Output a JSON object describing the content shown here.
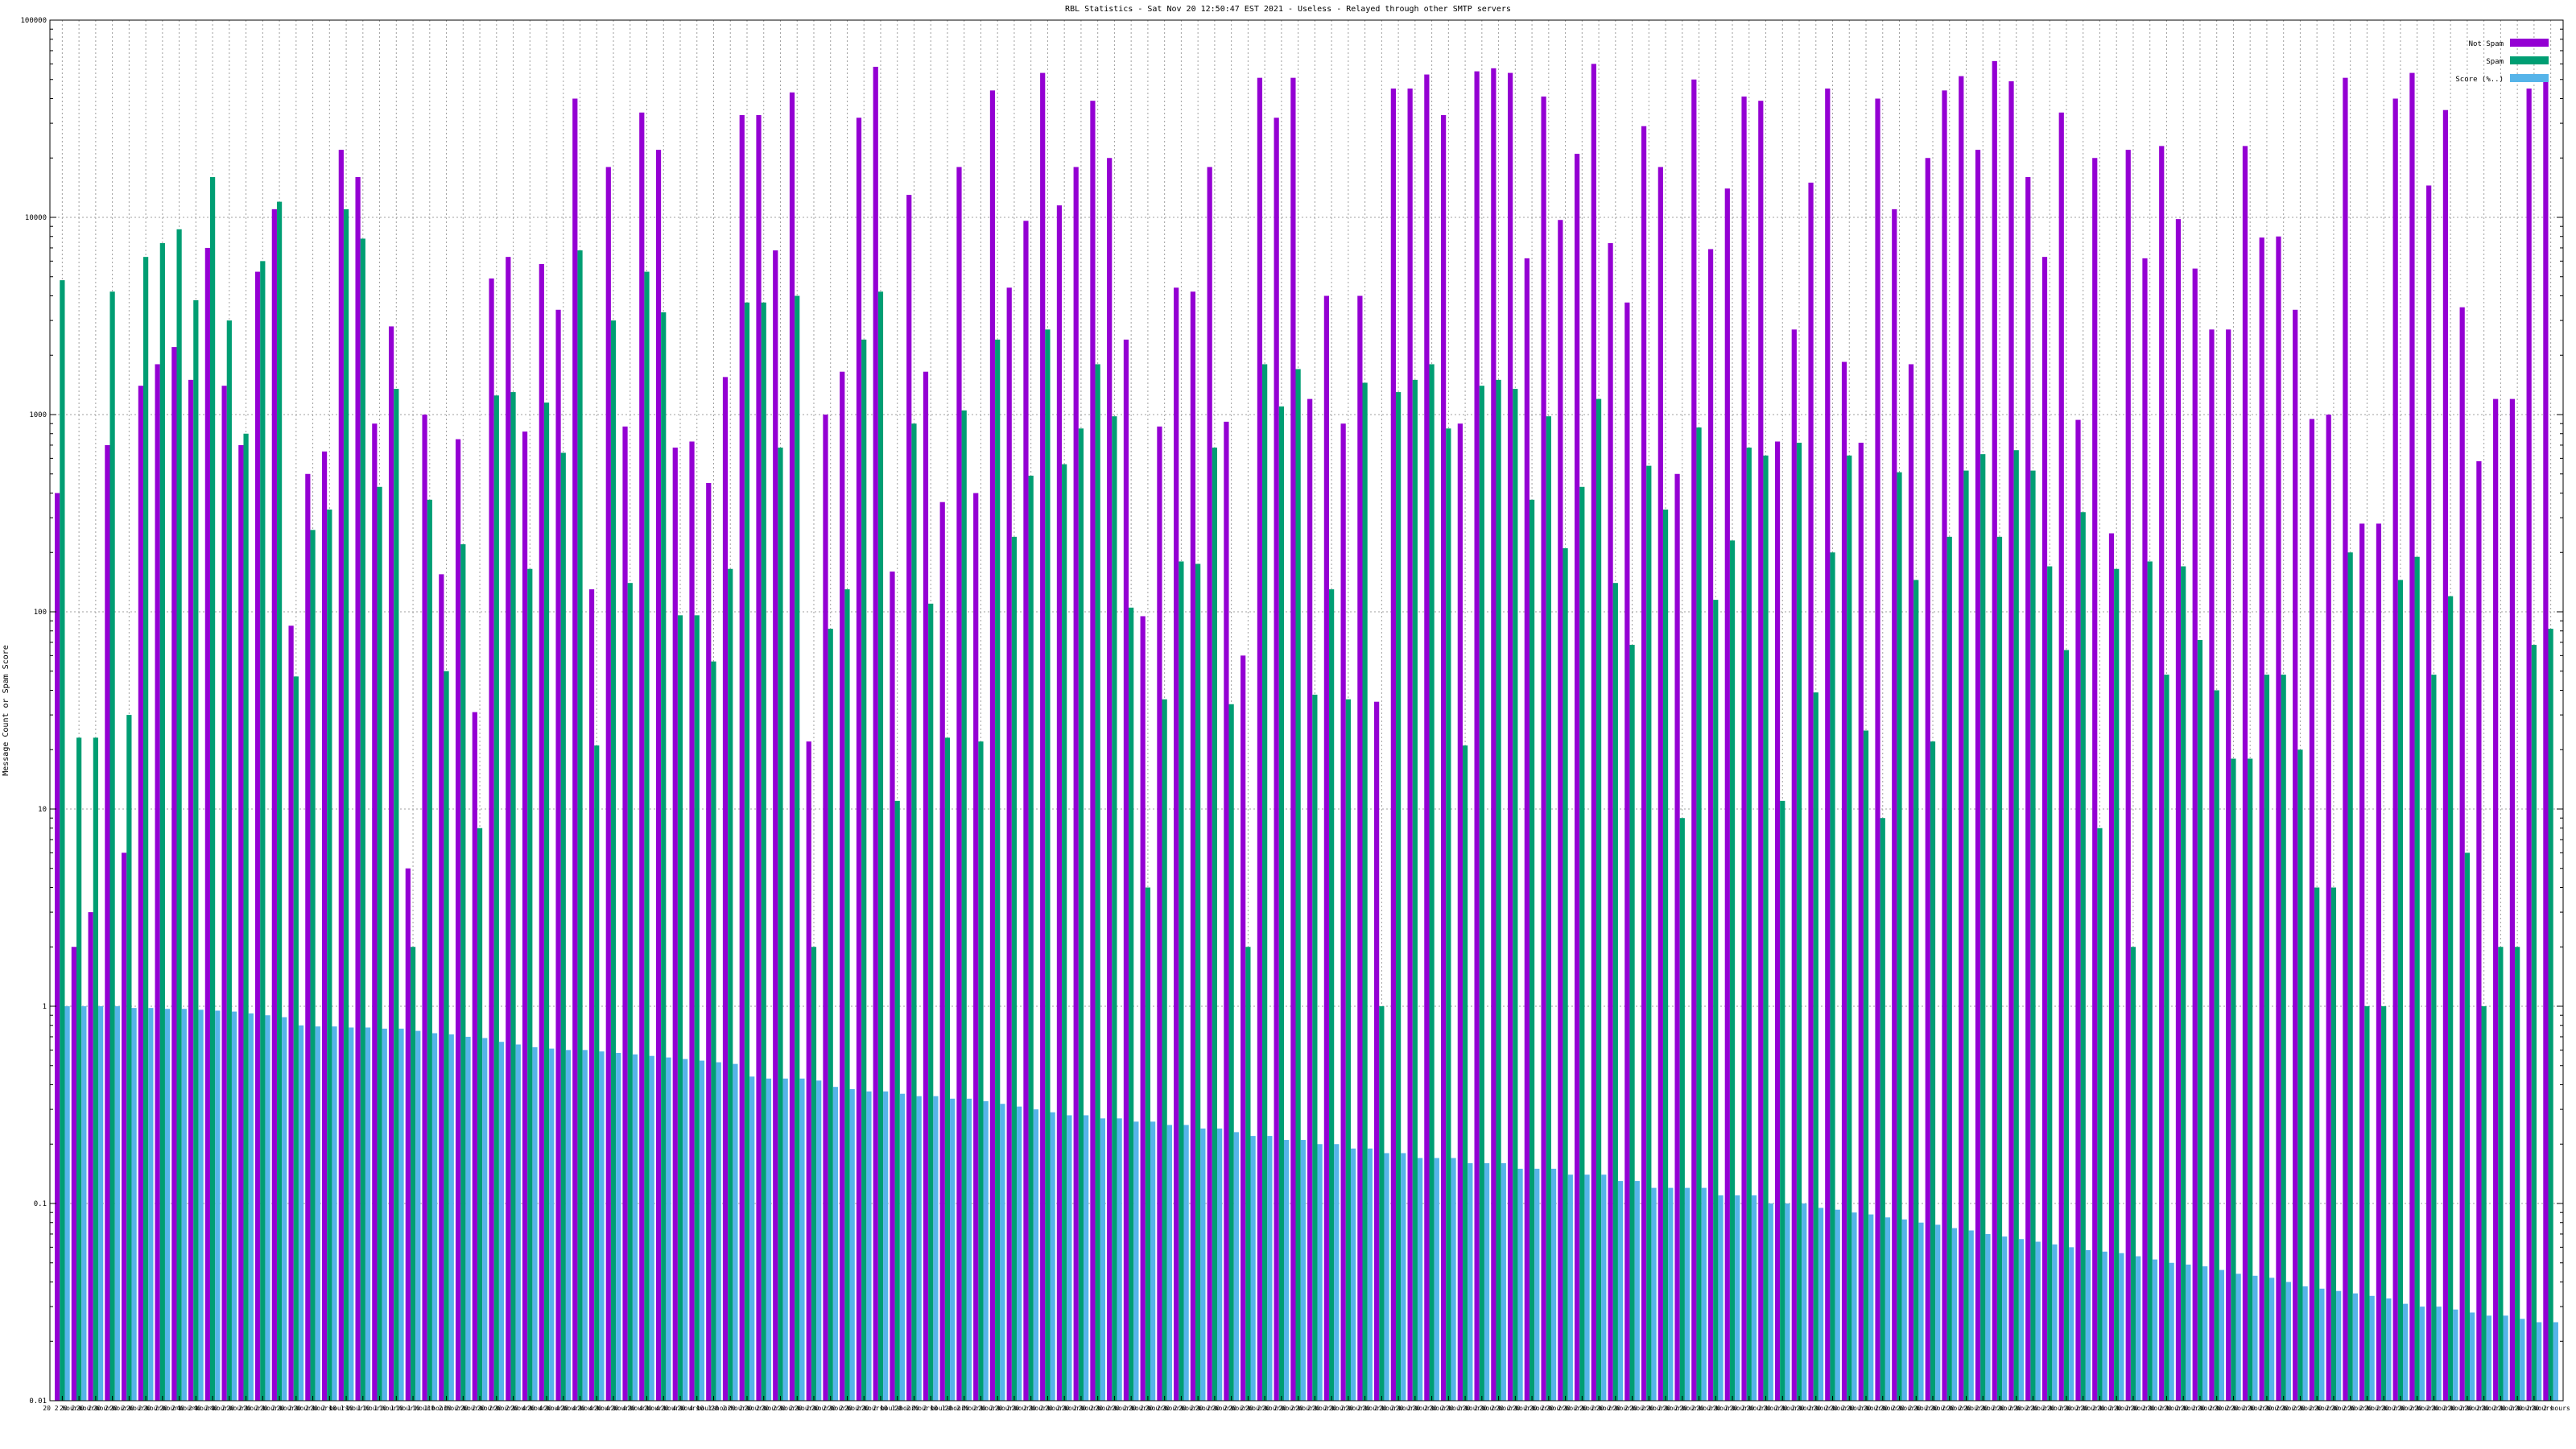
{
  "chart_data": {
    "type": "bar",
    "title": "RBL Statistics - Sat Nov 20 12:50:47 EST 2021 - Useless - Relayed through other SMTP servers",
    "xlabel": "",
    "ylabel": "Message Count or Spam Score",
    "yscale": "log",
    "ylim": [
      0.01,
      100000
    ],
    "yticks": [
      "0.01",
      "0.1",
      "1",
      "10",
      "100",
      "1000",
      "10000",
      "100000"
    ],
    "grid": true,
    "legend_position": "top-right",
    "colors": {
      "not_spam": "#9400d3",
      "spam": "#009e73",
      "score": "#56b4e9"
    },
    "series": [
      {
        "name": "Not Spam",
        "values": [
          400,
          2,
          3,
          700,
          6,
          1400,
          1800,
          2200,
          1500,
          7000,
          1400,
          700,
          5300,
          11000,
          85,
          500,
          650,
          22000,
          16000,
          900,
          2800,
          5,
          1000,
          155,
          750,
          31,
          4900,
          6300,
          820,
          5800,
          3400,
          40000,
          130,
          18000,
          870,
          34000,
          22000,
          680,
          730,
          450,
          1550,
          33000,
          33000,
          6800,
          43000,
          22,
          1000,
          1650,
          32000,
          58000,
          160,
          13000,
          1650,
          360,
          18000,
          400,
          44000,
          4400,
          9600,
          54000,
          11500,
          18000,
          39000,
          20000,
          2400,
          95,
          870,
          4400,
          4200,
          18000,
          920,
          60,
          51000,
          32000,
          51000,
          1200,
          4000,
          900,
          4000,
          35,
          45000,
          45000,
          53000,
          33000,
          900,
          55000,
          57000,
          54000,
          6200,
          41000,
          9700,
          21000,
          60000,
          7400,
          3700,
          29000,
          18000,
          500,
          50000,
          6900,
          14000,
          41000,
          39000,
          730,
          2700,
          15000,
          45000,
          1850,
          720,
          40000,
          11000,
          1800,
          20000,
          44000,
          52000,
          22000,
          62000,
          49000,
          16000,
          6300,
          34000,
          940,
          20000,
          250,
          22000,
          6200,
          23000,
          9800,
          5500,
          2700,
          2700,
          23000,
          7900,
          8000,
          3400,
          950,
          1000,
          51000,
          280,
          280,
          40000,
          54000,
          14500,
          35000,
          3500,
          580,
          1200,
          1200,
          45000,
          50000
        ]
      },
      {
        "name": "Spam",
        "values": [
          4800,
          23,
          23,
          4200,
          30,
          6300,
          7400,
          8700,
          3800,
          16000,
          3000,
          800,
          6000,
          12000,
          47,
          260,
          330,
          11000,
          7800,
          430,
          1350,
          2,
          370,
          50,
          220,
          8,
          1250,
          1300,
          165,
          1150,
          640,
          6800,
          21,
          3000,
          140,
          5300,
          3300,
          96,
          96,
          56,
          165,
          3700,
          3700,
          680,
          4000,
          2,
          82,
          130,
          2400,
          4200,
          11,
          900,
          110,
          23,
          1050,
          22,
          2400,
          240,
          490,
          2700,
          560,
          850,
          1800,
          980,
          105,
          4,
          36,
          180,
          175,
          680,
          34,
          2,
          1800,
          1100,
          1700,
          38,
          130,
          36,
          1450,
          1,
          1300,
          1500,
          1800,
          850,
          21,
          1400,
          1500,
          1350,
          370,
          980,
          210,
          430,
          1200,
          140,
          68,
          550,
          330,
          9,
          860,
          115,
          230,
          680,
          620,
          11,
          720,
          39,
          200,
          620,
          25,
          9,
          510,
          145,
          22,
          240,
          520,
          630,
          240,
          660,
          520,
          170,
          64,
          320,
          8,
          165,
          2,
          180,
          48,
          170,
          72,
          40,
          18,
          18,
          48,
          48,
          20,
          4,
          4,
          200,
          1,
          1,
          145,
          190,
          48,
          120,
          6,
          1,
          2,
          2,
          68,
          82
        ]
      },
      {
        "name": "Score (%..)",
        "values": [
          1,
          1,
          1,
          1,
          0.98,
          0.98,
          0.97,
          0.97,
          0.96,
          0.95,
          0.94,
          0.92,
          0.9,
          0.88,
          0.8,
          0.79,
          0.79,
          0.78,
          0.78,
          0.77,
          0.77,
          0.75,
          0.73,
          0.72,
          0.7,
          0.69,
          0.66,
          0.64,
          0.62,
          0.61,
          0.6,
          0.6,
          0.59,
          0.58,
          0.57,
          0.56,
          0.55,
          0.54,
          0.53,
          0.52,
          0.51,
          0.44,
          0.43,
          0.43,
          0.43,
          0.42,
          0.39,
          0.38,
          0.37,
          0.37,
          0.36,
          0.35,
          0.35,
          0.34,
          0.34,
          0.33,
          0.32,
          0.31,
          0.3,
          0.29,
          0.28,
          0.28,
          0.27,
          0.27,
          0.26,
          0.26,
          0.25,
          0.25,
          0.24,
          0.24,
          0.23,
          0.22,
          0.22,
          0.21,
          0.21,
          0.2,
          0.2,
          0.19,
          0.19,
          0.18,
          0.18,
          0.17,
          0.17,
          0.17,
          0.16,
          0.16,
          0.16,
          0.15,
          0.15,
          0.15,
          0.14,
          0.14,
          0.14,
          0.13,
          0.13,
          0.12,
          0.12,
          0.12,
          0.12,
          0.11,
          0.11,
          0.11,
          0.1,
          0.1,
          0.1,
          0.095,
          0.093,
          0.09,
          0.088,
          0.085,
          0.083,
          0.08,
          0.078,
          0.075,
          0.073,
          0.07,
          0.068,
          0.066,
          0.064,
          0.062,
          0.06,
          0.058,
          0.057,
          0.056,
          0.054,
          0.052,
          0.05,
          0.049,
          0.048,
          0.046,
          0.044,
          0.043,
          0.042,
          0.04,
          0.038,
          0.037,
          0.036,
          0.035,
          0.034,
          0.033,
          0.031,
          0.03,
          0.03,
          0.029,
          0.028,
          0.027,
          0.027,
          0.026,
          0.025,
          0.025
        ]
      }
    ],
    "category_labels": [
      "20 2 hours",
      "20 2 hours",
      "20 2 hours",
      "20 2 hours",
      "20 2 hours",
      "20 2 hours",
      "20 2 hours",
      "20 2 hours",
      "40 2 hours",
      "40 2 hours",
      "40 2 hours",
      "20 2 hours",
      "20 2 hours",
      "20 2 hours",
      "20 2 hours",
      "20 2 hours",
      "20 2 hours",
      "10 1 hour",
      "10 1 hour",
      "10 1 hour",
      "10 1 hour",
      "10 1 hour",
      "10 1 hour",
      "10 2 hours",
      "10 2 hours",
      "20 2 hours",
      "20 2 hours",
      "20 2 hours",
      "20 4 hours",
      "20 4 hours",
      "20 4 hours",
      "20 4 hours",
      "20 4 hours",
      "20 4 hours",
      "20 4 hours",
      "20 4 hours",
      "20 4 hours",
      "20 4 hours",
      "20 4 hours",
      "10 1 hour",
      "20 2 hours",
      "20 2 hours",
      "20 2 hours",
      "20 2 hours",
      "20 2 hours",
      "20 2 hours",
      "20 2 hours",
      "20 2 hours",
      "20 2 hours",
      "20 2 hours",
      "10 1 hour",
      "20 2 hours",
      "20 2 hours",
      "10 1 hour",
      "20 2 hours",
      "20 2 hours",
      "20 2 hours",
      "20 2 hours",
      "20 2 hours",
      "20 2 hours",
      "20 2 hours",
      "20 2 hours",
      "20 2 hours",
      "20 2 hours",
      "20 2 hours",
      "20 2 hours",
      "20 2 hours",
      "20 2 hours",
      "20 2 hours",
      "20 2 hours",
      "20 2 hours",
      "20 2 hours",
      "20 2 hours",
      "20 2 hours",
      "20 2 hours",
      "20 2 hours",
      "20 2 hours",
      "20 2 hours",
      "20 2 hours",
      "20 2 hours",
      "20 2 hours",
      "20 2 hours",
      "20 2 hours",
      "20 2 hours",
      "20 2 hours",
      "20 2 hours",
      "20 2 hours",
      "20 2 hours",
      "20 2 hours",
      "20 2 hours",
      "20 2 hours",
      "20 2 hours",
      "20 2 hours",
      "20 2 hours",
      "20 2 hours",
      "20 2 hours",
      "20 2 hours",
      "20 2 hours",
      "20 2 hours",
      "20 2 hours",
      "20 2 hours",
      "20 2 hours",
      "20 2 hours",
      "20 2 hours",
      "20 2 hours",
      "20 2 hours",
      "20 2 hours",
      "20 2 hours",
      "20 2 hours",
      "20 2 hours",
      "20 2 hours",
      "20 2 hours",
      "20 2 hours",
      "20 2 hours",
      "20 2 hours",
      "20 2 hours",
      "20 2 hours",
      "20 2 hours",
      "20 2 hours",
      "20 2 hours",
      "20 2 hours",
      "20 2 hours",
      "20 2 hours",
      "20 2 hours",
      "20 2 hours",
      "20 2 hours",
      "20 2 hours",
      "20 2 hours",
      "20 2 hours",
      "20 2 hours",
      "20 2 hours",
      "20 2 hours",
      "20 2 hours",
      "20 2 hours",
      "20 2 hours",
      "20 2 hours",
      "20 2 hours",
      "20 2 hours",
      "20 2 hours",
      "20 2 hours",
      "20 2 hours",
      "20 2 hours",
      "20 2 hours",
      "20 2 hours",
      "20 2 hours",
      "20 2 hours",
      "20 2 hours",
      "20 2 hours",
      "20 2 hours",
      "20 2 hours",
      "20 2 hours"
    ]
  }
}
